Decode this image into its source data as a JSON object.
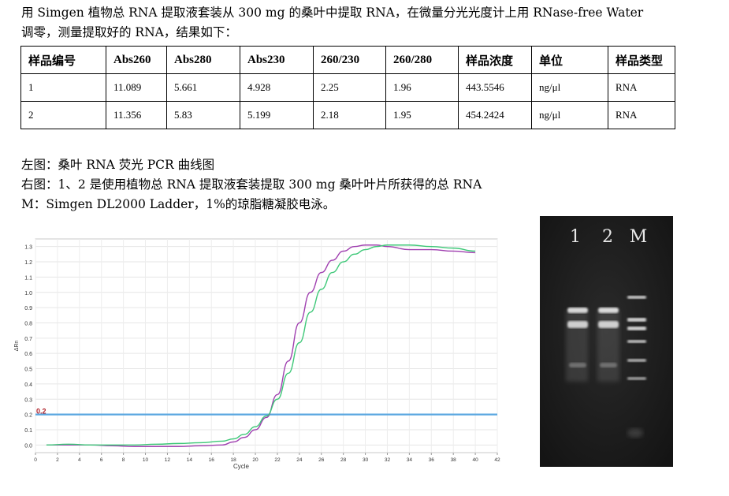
{
  "intro": {
    "line1": "用 Simgen 植物总 RNA 提取液套装从 300 mg 的桑叶中提取 RNA，在微量分光光度计上用 RNase-free Water",
    "line2": "调零，测量提取好的 RNA，结果如下："
  },
  "table": {
    "headers": [
      "样品编号",
      "Abs260",
      "Abs280",
      "Abs230",
      "260/230",
      "260/280",
      "样品浓度",
      "单位",
      "样品类型"
    ],
    "rows": [
      [
        "1",
        "11.089",
        "5.661",
        "4.928",
        "2.25",
        "1.96",
        "443.5546",
        "ng/μl",
        "RNA"
      ],
      [
        "2",
        "11.356",
        "5.83",
        "5.199",
        "2.18",
        "1.95",
        "454.2424",
        "ng/μl",
        "RNA"
      ]
    ]
  },
  "captions": {
    "left": "左图：桑叶 RNA 荧光 PCR 曲线图",
    "right": "右图：1、2 是使用植物总 RNA 提取液套装提取 300 mg 桑叶叶片所获得的总 RNA",
    "marker": "M：Simgen DL2000 Ladder，1%的琼脂糖凝胶电泳。"
  },
  "gel": {
    "lane_labels": [
      "1",
      "2",
      "M"
    ]
  },
  "chart_data": {
    "type": "line",
    "xlabel": "Cycle",
    "ylabel": "ΔRn",
    "xlim": [
      0,
      42
    ],
    "ylim": [
      -0.05,
      1.35
    ],
    "x_ticks": [
      "0",
      "2",
      "4",
      "6",
      "8",
      "10",
      "12",
      "14",
      "16",
      "18",
      "20",
      "22",
      "24",
      "26",
      "28",
      "30",
      "32",
      "34",
      "36",
      "38",
      "40",
      "42"
    ],
    "y_ticks": [
      "0.0",
      "0.1",
      "0.2",
      "0.3",
      "0.4",
      "0.5",
      "0.6",
      "0.7",
      "0.8",
      "0.9",
      "1.0",
      "1.1",
      "1.2",
      "1.3"
    ],
    "grid": true,
    "threshold": {
      "value": 0.2,
      "label": "0.2",
      "color": "#5aa7e0"
    },
    "series": [
      {
        "color": "#a040b0",
        "x": [
          1,
          3,
          5,
          7,
          9,
          11,
          13,
          15,
          17,
          18,
          19,
          20,
          21,
          22,
          23,
          24,
          25,
          26,
          27,
          28,
          29,
          30,
          31,
          32,
          34,
          36,
          38,
          40
        ],
        "y": [
          0.0,
          0.0,
          0.0,
          -0.005,
          -0.01,
          -0.01,
          -0.01,
          -0.005,
          0.0,
          0.02,
          0.05,
          0.1,
          0.18,
          0.33,
          0.55,
          0.8,
          1.0,
          1.13,
          1.21,
          1.27,
          1.3,
          1.31,
          1.31,
          1.3,
          1.28,
          1.28,
          1.27,
          1.26
        ]
      },
      {
        "color": "#3ec878",
        "x": [
          1,
          3,
          5,
          7,
          9,
          11,
          13,
          15,
          17,
          18,
          19,
          20,
          21,
          22,
          23,
          24,
          25,
          26,
          27,
          28,
          29,
          30,
          31,
          32,
          34,
          36,
          38,
          40
        ],
        "y": [
          0.0,
          0.005,
          0.0,
          0.0,
          0.0,
          0.005,
          0.01,
          0.015,
          0.025,
          0.04,
          0.07,
          0.12,
          0.19,
          0.3,
          0.47,
          0.67,
          0.87,
          1.02,
          1.13,
          1.2,
          1.25,
          1.28,
          1.3,
          1.31,
          1.31,
          1.3,
          1.29,
          1.27
        ]
      }
    ]
  }
}
